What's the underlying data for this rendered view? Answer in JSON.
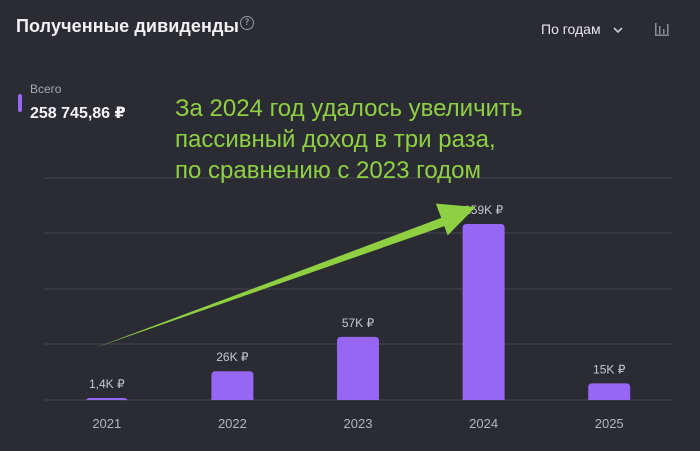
{
  "header": {
    "title": "Полученные дивиденды",
    "help_icon_glyph": "?",
    "period_label": "По годам",
    "chevron_icon": "chevron-down-icon",
    "chart_type_icon": "bar-chart-icon"
  },
  "total": {
    "label": "Всего",
    "value": "258 745,86 ₽"
  },
  "annotation": {
    "lines": [
      "За 2024 год удалось увеличить",
      "пассивный доход в три раза,",
      "по сравнению с 2023 годом"
    ]
  },
  "colors": {
    "background": "#2b2b33",
    "bar": "#9866f5",
    "annotation": "#8fd042",
    "arrow": "#8fd042",
    "grid": "#44444c"
  },
  "chart_data": {
    "type": "bar",
    "categories": [
      "2021",
      "2022",
      "2023",
      "2024",
      "2025"
    ],
    "values": [
      1400,
      26000,
      57000,
      159000,
      15000
    ],
    "data_labels": [
      "1,4K ₽",
      "26K ₽",
      "57K ₽",
      "159K ₽",
      "15K ₽"
    ],
    "ylim": [
      0,
      159000
    ],
    "grid": true,
    "legend": "none"
  }
}
